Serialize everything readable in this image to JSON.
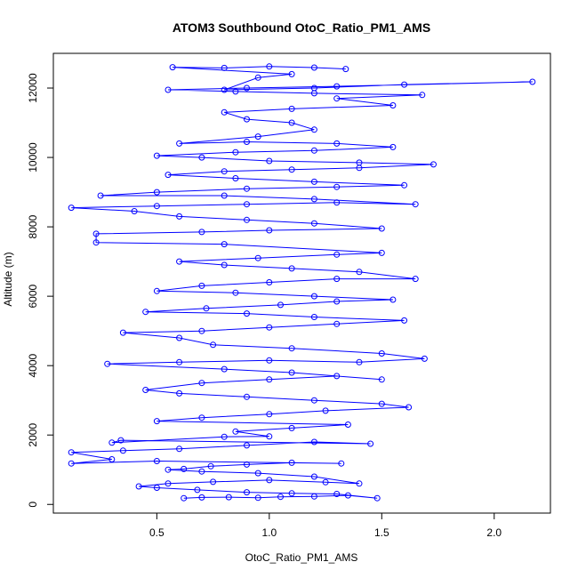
{
  "chart_data": {
    "type": "scatter",
    "title": "ATOM3 Southbound OtoC_Ratio_PM1_AMS",
    "xlabel": "OtoC_Ratio_PM1_AMS",
    "ylabel": "Altitude (m)",
    "xlim": [
      0.04,
      2.25
    ],
    "ylim": [
      -250,
      13000
    ],
    "x_ticks": [
      "0.5",
      "1.0",
      "1.5",
      "2.0"
    ],
    "y_ticks": [
      "0",
      "2000",
      "4000",
      "6000",
      "8000",
      "10000",
      "12000"
    ],
    "grid": false,
    "legend": "none",
    "colors": {
      "series": "#0000ff",
      "axes": "#000000"
    },
    "series": [
      {
        "marker": "open-circle",
        "connected": true,
        "points": [
          [
            0.62,
            180
          ],
          [
            0.7,
            200
          ],
          [
            0.82,
            210
          ],
          [
            0.95,
            190
          ],
          [
            1.05,
            220
          ],
          [
            1.2,
            230
          ],
          [
            1.35,
            260
          ],
          [
            1.48,
            180
          ],
          [
            1.3,
            300
          ],
          [
            1.1,
            320
          ],
          [
            0.9,
            350
          ],
          [
            0.68,
            420
          ],
          [
            0.5,
            480
          ],
          [
            0.42,
            520
          ],
          [
            0.55,
            600
          ],
          [
            0.75,
            650
          ],
          [
            1.0,
            700
          ],
          [
            1.25,
            640
          ],
          [
            1.4,
            600
          ],
          [
            1.2,
            800
          ],
          [
            0.95,
            900
          ],
          [
            0.7,
            950
          ],
          [
            0.55,
            1000
          ],
          [
            0.62,
            1020
          ],
          [
            0.74,
            1100
          ],
          [
            0.9,
            1150
          ],
          [
            1.1,
            1200
          ],
          [
            1.32,
            1180
          ],
          [
            0.5,
            1250
          ],
          [
            0.12,
            1180
          ],
          [
            0.3,
            1300
          ],
          [
            0.12,
            1500
          ],
          [
            0.35,
            1550
          ],
          [
            0.6,
            1600
          ],
          [
            0.9,
            1700
          ],
          [
            1.2,
            1800
          ],
          [
            1.45,
            1750
          ],
          [
            0.34,
            1850
          ],
          [
            0.3,
            1780
          ],
          [
            0.8,
            1950
          ],
          [
            1.0,
            1960
          ],
          [
            0.85,
            2100
          ],
          [
            1.1,
            2200
          ],
          [
            1.35,
            2300
          ],
          [
            0.5,
            2400
          ],
          [
            0.7,
            2500
          ],
          [
            1.0,
            2600
          ],
          [
            1.25,
            2700
          ],
          [
            1.62,
            2800
          ],
          [
            1.5,
            2900
          ],
          [
            1.2,
            3000
          ],
          [
            0.9,
            3100
          ],
          [
            0.6,
            3200
          ],
          [
            0.45,
            3300
          ],
          [
            0.7,
            3500
          ],
          [
            1.0,
            3600
          ],
          [
            1.3,
            3700
          ],
          [
            1.5,
            3600
          ],
          [
            1.1,
            3800
          ],
          [
            0.8,
            3900
          ],
          [
            0.28,
            4050
          ],
          [
            0.6,
            4100
          ],
          [
            1.0,
            4150
          ],
          [
            1.4,
            4100
          ],
          [
            1.69,
            4200
          ],
          [
            1.5,
            4350
          ],
          [
            1.1,
            4500
          ],
          [
            0.75,
            4600
          ],
          [
            0.6,
            4800
          ],
          [
            0.35,
            4950
          ],
          [
            0.7,
            5000
          ],
          [
            1.0,
            5100
          ],
          [
            1.3,
            5200
          ],
          [
            1.6,
            5300
          ],
          [
            1.2,
            5400
          ],
          [
            0.9,
            5500
          ],
          [
            0.45,
            5550
          ],
          [
            0.72,
            5650
          ],
          [
            1.05,
            5750
          ],
          [
            1.3,
            5850
          ],
          [
            1.55,
            5900
          ],
          [
            1.2,
            6000
          ],
          [
            0.85,
            6100
          ],
          [
            0.5,
            6150
          ],
          [
            0.7,
            6300
          ],
          [
            1.0,
            6400
          ],
          [
            1.3,
            6500
          ],
          [
            1.65,
            6500
          ],
          [
            1.4,
            6700
          ],
          [
            1.1,
            6800
          ],
          [
            0.8,
            6900
          ],
          [
            0.6,
            7000
          ],
          [
            0.95,
            7100
          ],
          [
            1.3,
            7200
          ],
          [
            1.5,
            7250
          ],
          [
            0.8,
            7500
          ],
          [
            0.23,
            7550
          ],
          [
            0.23,
            7800
          ],
          [
            0.7,
            7850
          ],
          [
            1.0,
            7900
          ],
          [
            1.5,
            7950
          ],
          [
            1.2,
            8100
          ],
          [
            0.9,
            8200
          ],
          [
            0.6,
            8300
          ],
          [
            0.4,
            8450
          ],
          [
            0.12,
            8550
          ],
          [
            0.5,
            8600
          ],
          [
            0.9,
            8650
          ],
          [
            1.3,
            8700
          ],
          [
            1.65,
            8650
          ],
          [
            1.2,
            8800
          ],
          [
            0.8,
            8900
          ],
          [
            0.25,
            8900
          ],
          [
            0.5,
            9000
          ],
          [
            0.9,
            9100
          ],
          [
            1.3,
            9150
          ],
          [
            1.6,
            9200
          ],
          [
            1.2,
            9300
          ],
          [
            0.85,
            9400
          ],
          [
            0.55,
            9500
          ],
          [
            0.8,
            9600
          ],
          [
            1.1,
            9650
          ],
          [
            1.4,
            9700
          ],
          [
            1.73,
            9800
          ],
          [
            1.4,
            9850
          ],
          [
            1.0,
            9900
          ],
          [
            0.7,
            10000
          ],
          [
            0.5,
            10050
          ],
          [
            0.85,
            10150
          ],
          [
            1.2,
            10200
          ],
          [
            1.55,
            10300
          ],
          [
            1.3,
            10400
          ],
          [
            0.9,
            10450
          ],
          [
            0.6,
            10400
          ],
          [
            0.95,
            10600
          ],
          [
            1.2,
            10800
          ],
          [
            1.1,
            11000
          ],
          [
            0.9,
            11100
          ],
          [
            0.8,
            11300
          ],
          [
            1.1,
            11400
          ],
          [
            1.55,
            11500
          ],
          [
            1.3,
            11700
          ],
          [
            1.68,
            11800
          ],
          [
            1.2,
            11850
          ],
          [
            0.85,
            11900
          ],
          [
            0.55,
            11950
          ],
          [
            0.9,
            12000
          ],
          [
            1.3,
            12050
          ],
          [
            2.17,
            12180
          ],
          [
            1.6,
            12100
          ],
          [
            1.2,
            12000
          ],
          [
            0.8,
            11950
          ],
          [
            0.95,
            12300
          ],
          [
            1.1,
            12400
          ],
          [
            0.57,
            12600
          ],
          [
            0.8,
            12580
          ],
          [
            1.0,
            12620
          ],
          [
            1.2,
            12590
          ],
          [
            1.34,
            12550
          ]
        ]
      }
    ]
  }
}
